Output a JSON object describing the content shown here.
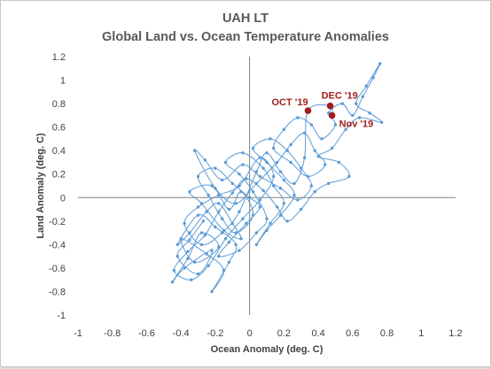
{
  "chart_data": {
    "type": "scatter",
    "title": "UAH LT",
    "subtitle": "Global Land vs. Ocean Temperature Anomalies",
    "xlabel": "Ocean Anomaly (deg. C)",
    "ylabel": "Land Anomaly (deg. C)",
    "xlim": [
      -1,
      1.2
    ],
    "ylim": [
      -1,
      1.2
    ],
    "x_ticks": [
      "-1",
      "-0.8",
      "-0.6",
      "-0.4",
      "-0.2",
      "0",
      "0.2",
      "0.4",
      "0.6",
      "0.8",
      "1",
      "1.2"
    ],
    "y_ticks": [
      "-1",
      "-0.8",
      "-0.6",
      "-0.4",
      "-0.2",
      "0",
      "0.2",
      "0.4",
      "0.6",
      "0.8",
      "1",
      "1.2"
    ],
    "grid": false,
    "series_color": "#5b9bd5",
    "highlight_color": "#a01d1d",
    "series": [
      {
        "points": [
          [
            -0.27,
            -0.2
          ],
          [
            -0.35,
            -0.36
          ],
          [
            -0.42,
            -0.5
          ],
          [
            -0.3,
            -0.65
          ],
          [
            -0.22,
            -0.45
          ],
          [
            -0.38,
            -0.6
          ],
          [
            -0.45,
            -0.72
          ],
          [
            -0.36,
            -0.52
          ],
          [
            -0.28,
            -0.3
          ],
          [
            -0.18,
            -0.42
          ],
          [
            -0.32,
            -0.55
          ],
          [
            -0.4,
            -0.35
          ],
          [
            -0.25,
            -0.48
          ],
          [
            -0.15,
            -0.62
          ],
          [
            -0.22,
            -0.8
          ],
          [
            -0.12,
            -0.55
          ],
          [
            -0.08,
            -0.4
          ],
          [
            -0.2,
            -0.25
          ],
          [
            -0.3,
            -0.15
          ],
          [
            -0.42,
            -0.4
          ],
          [
            -0.35,
            -0.3
          ],
          [
            -0.25,
            -0.12
          ],
          [
            -0.18,
            -0.05
          ],
          [
            -0.1,
            -0.22
          ],
          [
            -0.05,
            -0.35
          ],
          [
            -0.15,
            -0.28
          ],
          [
            -0.28,
            -0.05
          ],
          [
            -0.35,
            0.05
          ],
          [
            -0.22,
            0.1
          ],
          [
            -0.12,
            -0.1
          ],
          [
            -0.05,
            0.05
          ],
          [
            0.02,
            -0.15
          ],
          [
            -0.08,
            -0.3
          ],
          [
            -0.16,
            -0.18
          ],
          [
            -0.24,
            0.02
          ],
          [
            -0.3,
            0.18
          ],
          [
            -0.2,
            0.25
          ],
          [
            -0.1,
            0.12
          ],
          [
            0.0,
            0.0
          ],
          [
            0.06,
            -0.08
          ],
          [
            -0.02,
            -0.22
          ],
          [
            -0.12,
            -0.38
          ],
          [
            -0.18,
            -0.5
          ],
          [
            -0.06,
            -0.45
          ],
          [
            0.04,
            -0.3
          ],
          [
            0.1,
            -0.18
          ],
          [
            0.02,
            0.05
          ],
          [
            -0.06,
            0.2
          ],
          [
            -0.14,
            0.3
          ],
          [
            -0.04,
            0.38
          ],
          [
            0.08,
            0.25
          ],
          [
            0.14,
            0.1
          ],
          [
            0.2,
            -0.05
          ],
          [
            0.12,
            -0.22
          ],
          [
            0.04,
            -0.4
          ],
          [
            0.1,
            -0.28
          ],
          [
            0.18,
            -0.15
          ],
          [
            0.26,
            0.02
          ],
          [
            0.2,
            0.15
          ],
          [
            0.1,
            0.3
          ],
          [
            0.02,
            0.42
          ],
          [
            0.12,
            0.5
          ],
          [
            0.22,
            0.4
          ],
          [
            0.3,
            0.25
          ],
          [
            0.36,
            0.1
          ],
          [
            0.28,
            -0.02
          ],
          [
            0.18,
            0.08
          ],
          [
            0.06,
            0.18
          ],
          [
            -0.04,
            0.28
          ],
          [
            -0.16,
            0.15
          ],
          [
            -0.26,
            0.32
          ],
          [
            -0.32,
            0.4
          ],
          [
            -0.2,
            0.08
          ],
          [
            -0.08,
            -0.05
          ],
          [
            0.04,
            0.12
          ],
          [
            0.16,
            0.3
          ],
          [
            0.24,
            0.45
          ],
          [
            0.32,
            0.55
          ],
          [
            0.38,
            0.4
          ],
          [
            0.44,
            0.28
          ],
          [
            0.34,
            0.18
          ],
          [
            0.24,
            0.3
          ],
          [
            0.14,
            0.42
          ],
          [
            0.2,
            0.58
          ],
          [
            0.28,
            0.68
          ],
          [
            0.36,
            0.62
          ],
          [
            0.42,
            0.5
          ],
          [
            0.5,
            0.62
          ],
          [
            0.46,
            0.72
          ],
          [
            0.54,
            0.8
          ],
          [
            0.6,
            0.7
          ],
          [
            0.66,
            0.86
          ],
          [
            0.72,
            1.02
          ],
          [
            0.76,
            1.14
          ],
          [
            0.68,
            0.95
          ],
          [
            0.62,
            0.8
          ],
          [
            0.7,
            0.72
          ],
          [
            0.77,
            0.64
          ],
          [
            0.64,
            0.68
          ],
          [
            0.56,
            0.58
          ],
          [
            0.48,
            0.42
          ],
          [
            0.4,
            0.35
          ],
          [
            0.52,
            0.3
          ],
          [
            0.58,
            0.18
          ],
          [
            0.46,
            0.12
          ],
          [
            0.38,
            0.05
          ],
          [
            0.3,
            -0.1
          ],
          [
            0.22,
            -0.2
          ],
          [
            0.16,
            -0.08
          ],
          [
            0.08,
            0.06
          ],
          [
            -0.02,
            0.16
          ],
          [
            -0.1,
            0.04
          ],
          [
            -0.18,
            -0.12
          ],
          [
            -0.26,
            -0.32
          ],
          [
            -0.36,
            -0.46
          ],
          [
            -0.44,
            -0.62
          ],
          [
            -0.34,
            -0.7
          ],
          [
            -0.24,
            -0.58
          ],
          [
            -0.14,
            -0.35
          ],
          [
            -0.04,
            -0.18
          ],
          [
            0.06,
            -0.02
          ],
          [
            0.14,
            0.18
          ],
          [
            0.06,
            0.34
          ],
          [
            -0.06,
            0.1
          ],
          [
            -0.18,
            0.02
          ],
          [
            -0.3,
            -0.08
          ],
          [
            -0.38,
            -0.22
          ],
          [
            -0.28,
            -0.4
          ],
          [
            -0.16,
            -0.3
          ],
          [
            -0.06,
            -0.12
          ],
          [
            0.04,
            0.22
          ],
          [
            0.1,
            0.38
          ],
          [
            0.18,
            0.22
          ],
          [
            0.26,
            0.12
          ],
          [
            0.32,
            0.34
          ],
          [
            0.34,
            0.74
          ],
          [
            0.47,
            0.78
          ],
          [
            0.48,
            0.7
          ]
        ]
      }
    ],
    "annotations": [
      {
        "label": "OCT '19",
        "x": 0.34,
        "y": 0.74
      },
      {
        "label": "DEC '19",
        "x": 0.47,
        "y": 0.78
      },
      {
        "label": "Nov '19",
        "x": 0.48,
        "y": 0.7
      }
    ]
  }
}
